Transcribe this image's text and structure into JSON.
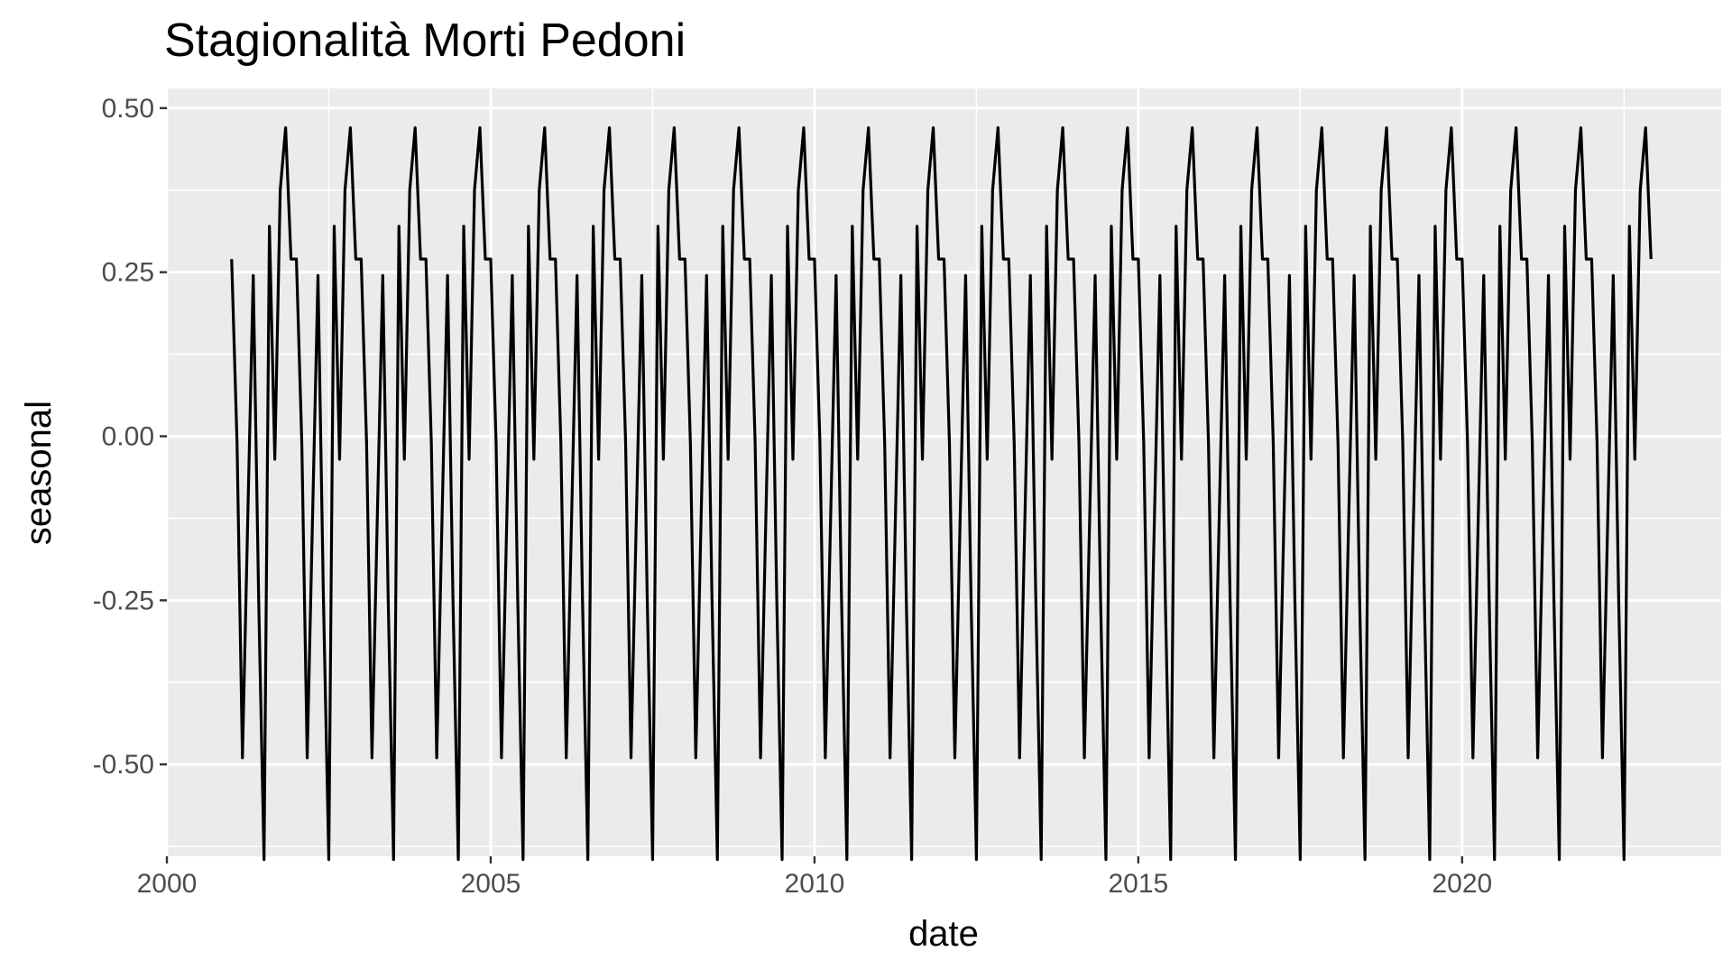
{
  "chart_data": {
    "type": "line",
    "title": "Stagionalità Morti Pedoni",
    "xlabel": "date",
    "ylabel": "seasonal",
    "xlim": [
      2000,
      2024.0
    ],
    "ylim": [
      -0.64,
      0.53
    ],
    "x_ticks": [
      2000,
      2005,
      2010,
      2015,
      2020
    ],
    "x_tick_labels": [
      "2000",
      "2005",
      "2010",
      "2015",
      "2020"
    ],
    "y_ticks": [
      0.5,
      0.25,
      0.0,
      -0.25,
      -0.5
    ],
    "y_tick_labels": [
      "0.50",
      "0.25",
      "0.00",
      "-0.25",
      "-0.50"
    ],
    "grid": true,
    "legend": "none",
    "colors": {
      "panel_background": "#ebebeb",
      "grid": "#ffffff",
      "line": "#000000"
    },
    "series": [
      {
        "start_year": 2001,
        "start_month": 1,
        "end_year": 2022,
        "end_month": 12,
        "monthly_cycle": [
          0.27,
          -0.01,
          -0.49,
          -0.12,
          0.245,
          -0.245,
          -0.645,
          0.32,
          -0.035,
          0.375,
          0.47,
          0.27
        ]
      }
    ]
  }
}
